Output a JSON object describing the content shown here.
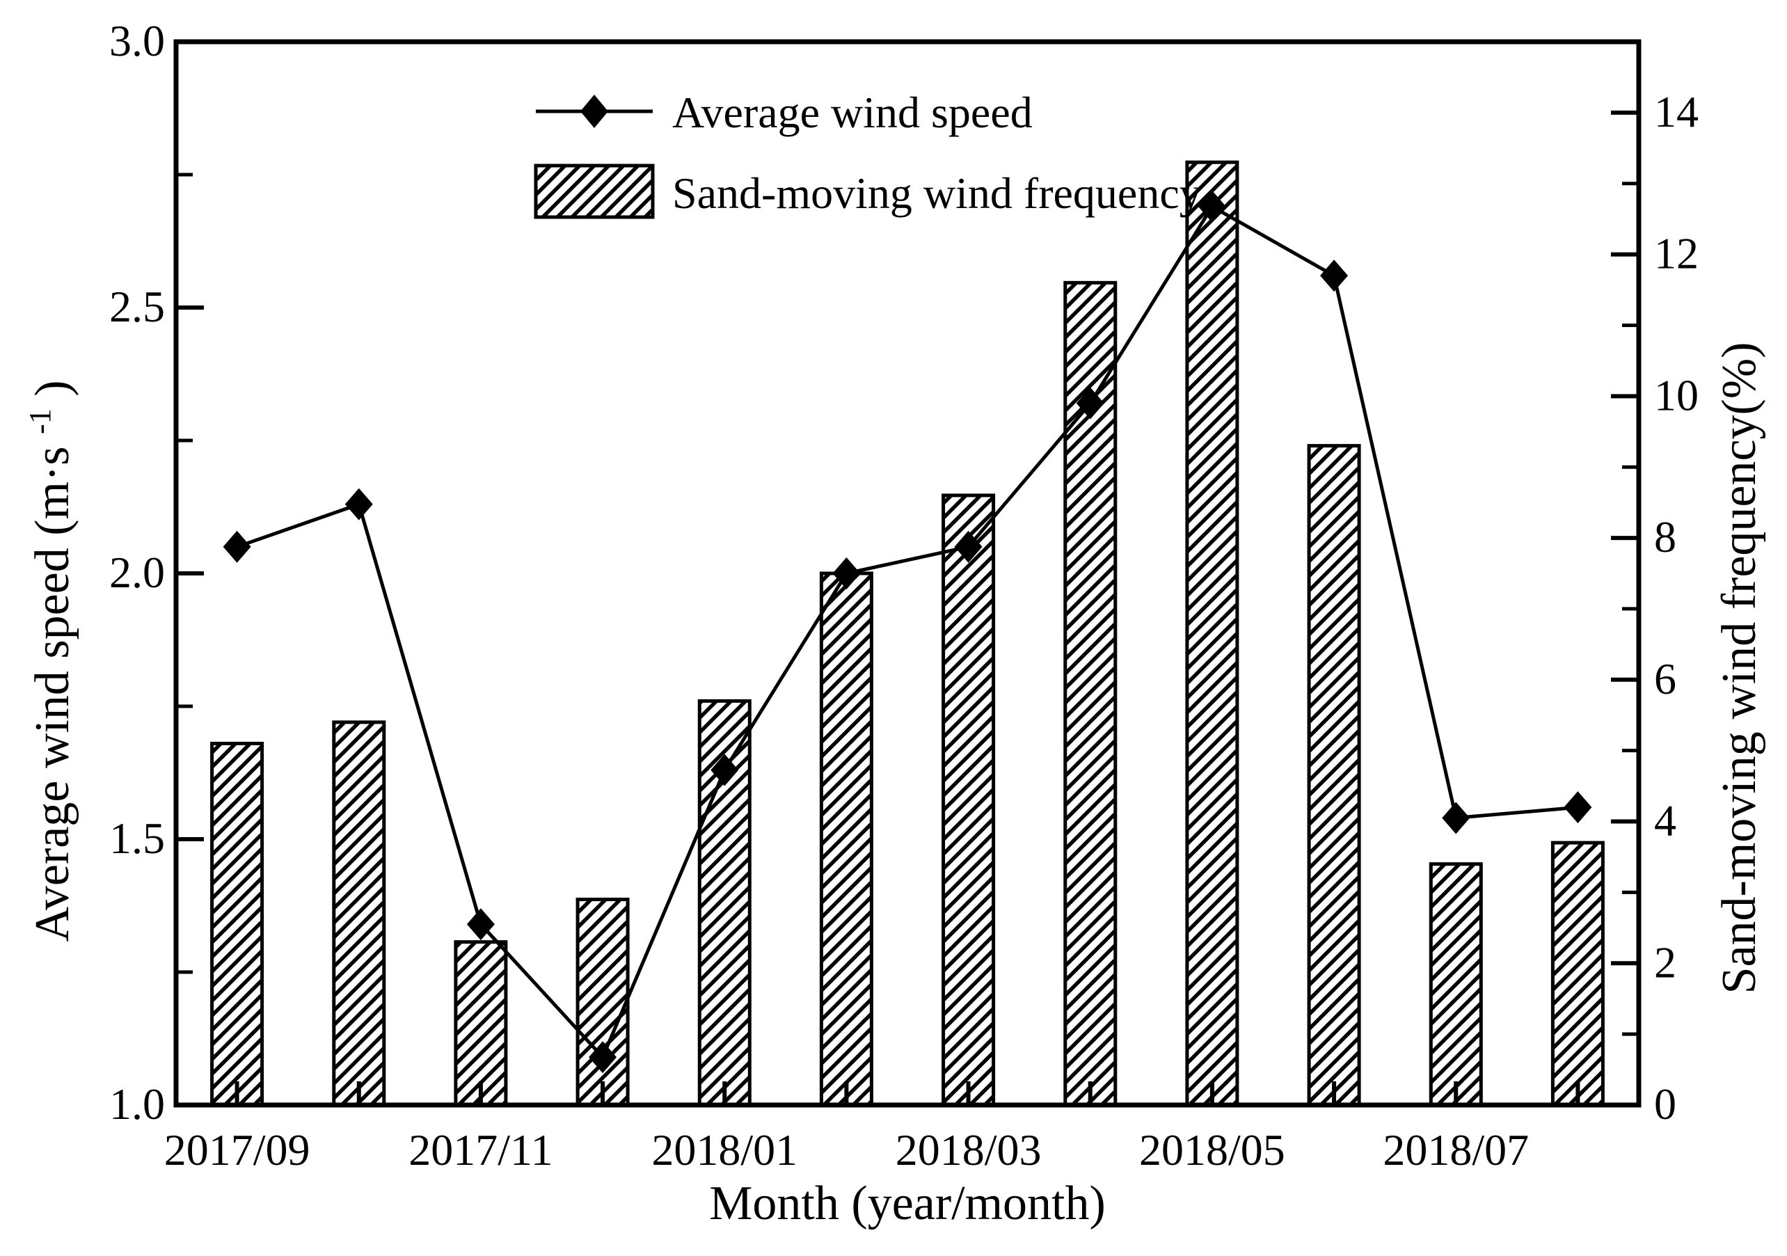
{
  "page": {
    "background_color": "#ffffff",
    "foreground_color": "#000000",
    "description": "Combination chart of monthly average wind speed (line with diamond markers, left axis) and sand-moving wind frequency (hatched bars, right axis) from 2017/09 to 2018/08"
  },
  "chart_data": {
    "type": "combo (line + bar)",
    "categories": [
      "2017/09",
      "2017/10",
      "2017/11",
      "2017/12",
      "2018/01",
      "2018/02",
      "2018/03",
      "2018/04",
      "2018/05",
      "2018/06",
      "2018/07",
      "2018/08"
    ],
    "series": [
      {
        "name": "Average wind speed",
        "type": "line",
        "axis": "left",
        "marker": "filled-diamond",
        "color": "#000000",
        "values": [
          2.05,
          2.13,
          1.34,
          1.09,
          1.63,
          2.0,
          2.05,
          2.32,
          2.69,
          2.56,
          1.54,
          1.56
        ]
      },
      {
        "name": "Sand-moving wind frequency",
        "type": "bar",
        "axis": "right",
        "fill": "diagonal-hatch",
        "color": "#000000",
        "values": [
          5.1,
          5.4,
          2.3,
          2.9,
          5.7,
          7.5,
          8.6,
          11.6,
          13.3,
          9.3,
          3.4,
          3.7
        ]
      }
    ],
    "title": "",
    "xlabel": "Month (year/month)",
    "ylabel_left_main": "Average wind speed (m·s",
    "ylabel_left_sup": "-1",
    "ylabel_left_close": ")",
    "ylabel_right": "Sand-moving wind frequency(%)",
    "ylim_left": [
      1.0,
      3.0
    ],
    "ylim_right": [
      0,
      15
    ],
    "yticks_left": [
      "3.0",
      "2.5",
      "2.0",
      "1.5",
      "1.0"
    ],
    "yticks_left_minor": [
      2.75,
      2.25,
      1.75,
      1.25
    ],
    "yticks_right": [
      "14",
      "12",
      "10",
      "8",
      "6",
      "4",
      "2",
      "0"
    ],
    "yticks_right_minor": [
      13,
      11,
      9,
      7,
      5,
      3,
      1
    ],
    "xtick_labels": [
      "2017/09",
      "2017/11",
      "2018/01",
      "2018/03",
      "2018/05",
      "2018/07"
    ],
    "grid": false,
    "legend_position": "top-center-inside"
  }
}
